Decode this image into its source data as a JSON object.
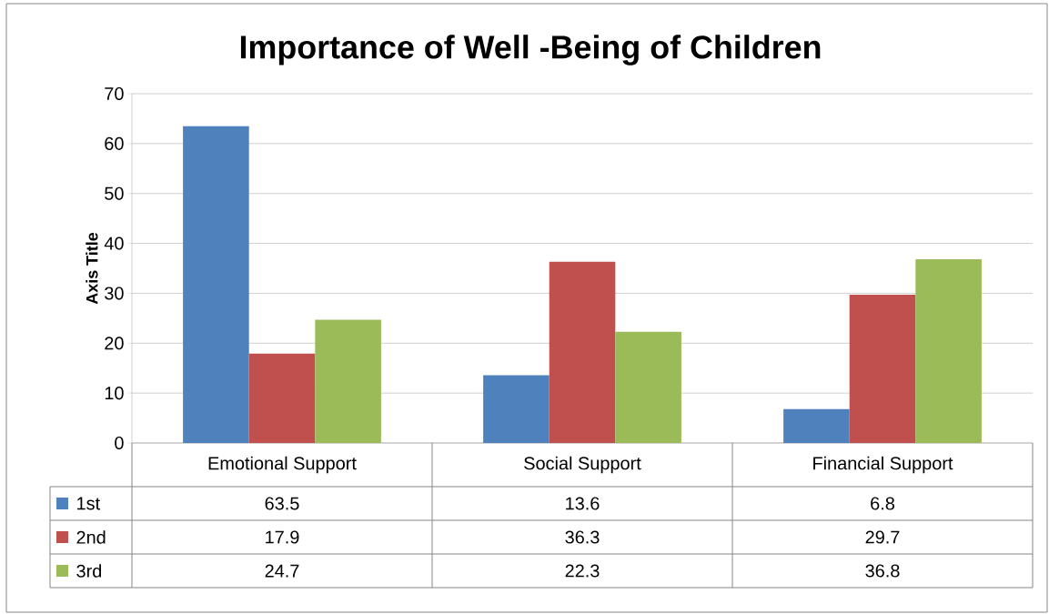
{
  "chart_data": {
    "type": "bar",
    "title": "Importance of Well -Being of Children",
    "ylabel": "Axis Title",
    "categories": [
      "Emotional Support",
      "Social Support",
      "Financial Support"
    ],
    "series": [
      {
        "name": "1st",
        "color": "#4f81bd",
        "values": [
          63.5,
          13.6,
          6.8
        ]
      },
      {
        "name": "2nd",
        "color": "#c0504d",
        "values": [
          17.9,
          36.3,
          29.7
        ]
      },
      {
        "name": "3rd",
        "color": "#9bbb59",
        "values": [
          24.7,
          22.3,
          36.8
        ]
      }
    ],
    "ylim": [
      0,
      70
    ],
    "yticks": [
      0,
      10,
      20,
      30,
      40,
      50,
      60,
      70
    ],
    "grid": "y",
    "legend": "bottom left",
    "data_labels": true
  }
}
